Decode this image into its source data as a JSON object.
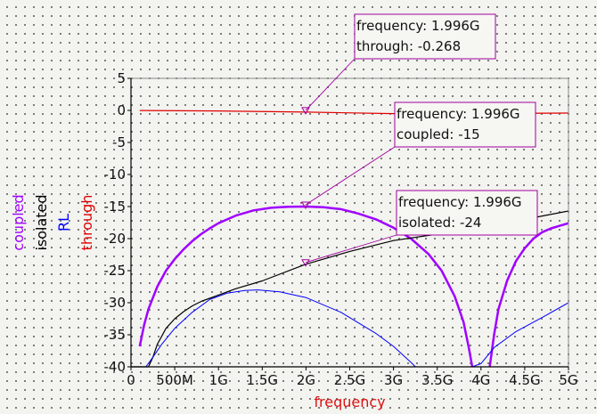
{
  "chart_data": {
    "type": "line",
    "xlabel": "frequency",
    "ylabels": [
      {
        "text": "coupled",
        "color": "#a000ff"
      },
      {
        "text": "isolated",
        "color": "#000000"
      },
      {
        "text": "RL",
        "color": "#0000ff"
      },
      {
        "text": "through",
        "color": "#e00000"
      }
    ],
    "xlim": [
      0,
      5000000000
    ],
    "ylim": [
      -40,
      5
    ],
    "xticks": [
      {
        "v": 0,
        "label": "0"
      },
      {
        "v": 500000000,
        "label": "500M"
      },
      {
        "v": 1000000000,
        "label": "1G"
      },
      {
        "v": 1500000000,
        "label": "1.5G"
      },
      {
        "v": 2000000000,
        "label": "2G"
      },
      {
        "v": 2500000000,
        "label": "2.5G"
      },
      {
        "v": 3000000000,
        "label": "3G"
      },
      {
        "v": 3500000000,
        "label": "3.5G"
      },
      {
        "v": 4000000000,
        "label": "4G"
      },
      {
        "v": 4500000000,
        "label": "4.5G"
      },
      {
        "v": 5000000000,
        "label": "5G"
      }
    ],
    "yticks": [
      {
        "v": 5,
        "label": "5"
      },
      {
        "v": 0,
        "label": "0"
      },
      {
        "v": -5,
        "label": "-5"
      },
      {
        "v": -10,
        "label": "-10"
      },
      {
        "v": -15,
        "label": "-15"
      },
      {
        "v": -20,
        "label": "-20"
      },
      {
        "v": -25,
        "label": "-25"
      },
      {
        "v": -30,
        "label": "-30"
      },
      {
        "v": -35,
        "label": "-35"
      },
      {
        "v": -40,
        "label": "-40"
      }
    ],
    "series": [
      {
        "name": "through",
        "color": "#e00000",
        "width": 1.2,
        "points": [
          [
            100000000,
            -0.01
          ],
          [
            1000000000,
            -0.08
          ],
          [
            2000000000,
            -0.27
          ],
          [
            3000000000,
            -0.5
          ],
          [
            4000000000,
            -0.48
          ],
          [
            5000000000,
            -0.42
          ]
        ]
      },
      {
        "name": "coupled",
        "color": "#a000ff",
        "width": 2.5,
        "points": [
          [
            100000000,
            -36.8
          ],
          [
            150000000,
            -33.5
          ],
          [
            200000000,
            -31
          ],
          [
            300000000,
            -27.5
          ],
          [
            400000000,
            -25
          ],
          [
            500000000,
            -23.2
          ],
          [
            600000000,
            -21.7
          ],
          [
            700000000,
            -20.4
          ],
          [
            800000000,
            -19.3
          ],
          [
            900000000,
            -18.4
          ],
          [
            1000000000,
            -17.6
          ],
          [
            1100000000,
            -17
          ],
          [
            1200000000,
            -16.4
          ],
          [
            1300000000,
            -16
          ],
          [
            1400000000,
            -15.6
          ],
          [
            1500000000,
            -15.4
          ],
          [
            1600000000,
            -15.2
          ],
          [
            1700000000,
            -15.1
          ],
          [
            1800000000,
            -15.03
          ],
          [
            1996000000,
            -15
          ],
          [
            2200000000,
            -15.1
          ],
          [
            2400000000,
            -15.4
          ],
          [
            2600000000,
            -16.1
          ],
          [
            2800000000,
            -17
          ],
          [
            3000000000,
            -18.3
          ],
          [
            3200000000,
            -20
          ],
          [
            3400000000,
            -22.4
          ],
          [
            3550000000,
            -25
          ],
          [
            3700000000,
            -29
          ],
          [
            3800000000,
            -33
          ],
          [
            3860000000,
            -37
          ],
          [
            3900000000,
            -40
          ]
        ]
      },
      {
        "name": "coupled",
        "color": "#a000ff",
        "width": 2.5,
        "points": [
          [
            4100000000,
            -40
          ],
          [
            4150000000,
            -35
          ],
          [
            4200000000,
            -31
          ],
          [
            4300000000,
            -26.5
          ],
          [
            4400000000,
            -23.5
          ],
          [
            4500000000,
            -21.5
          ],
          [
            4600000000,
            -20
          ],
          [
            4700000000,
            -19
          ],
          [
            4800000000,
            -18.4
          ],
          [
            4900000000,
            -18
          ],
          [
            5000000000,
            -17.6
          ]
        ]
      },
      {
        "name": "isolated",
        "color": "#000000",
        "width": 1.2,
        "points": [
          [
            0,
            -40
          ],
          [
            200000000,
            -40
          ],
          [
            250000000,
            -38.5
          ],
          [
            300000000,
            -36.5
          ],
          [
            400000000,
            -34
          ],
          [
            500000000,
            -32.5
          ],
          [
            600000000,
            -31.4
          ],
          [
            700000000,
            -30.5
          ],
          [
            800000000,
            -29.8
          ],
          [
            900000000,
            -29.3
          ],
          [
            1000000000,
            -28.8
          ],
          [
            1200000000,
            -27.8
          ],
          [
            1500000000,
            -26.6
          ],
          [
            1996000000,
            -24
          ],
          [
            2500000000,
            -22
          ],
          [
            3000000000,
            -20.3
          ],
          [
            3500000000,
            -19.3
          ],
          [
            4000000000,
            -18.3
          ],
          [
            4500000000,
            -17
          ],
          [
            5000000000,
            -15.7
          ]
        ]
      },
      {
        "name": "RL",
        "color": "#0000ff",
        "width": 1.0,
        "points": [
          [
            0,
            -40
          ],
          [
            170000000,
            -40
          ],
          [
            250000000,
            -38.5
          ],
          [
            350000000,
            -36.5
          ],
          [
            500000000,
            -34
          ],
          [
            700000000,
            -31.5
          ],
          [
            900000000,
            -29.5
          ],
          [
            1100000000,
            -28.5
          ],
          [
            1300000000,
            -28.1
          ],
          [
            1450000000,
            -28
          ],
          [
            1700000000,
            -28.3
          ],
          [
            2000000000,
            -29.2
          ],
          [
            2400000000,
            -31.5
          ],
          [
            2800000000,
            -34.8
          ],
          [
            3000000000,
            -36.8
          ],
          [
            3200000000,
            -39.3
          ],
          [
            3250000000,
            -40
          ],
          [
            3900000000,
            -40
          ],
          [
            4000000000,
            -39.5
          ],
          [
            4150000000,
            -37
          ],
          [
            4400000000,
            -34.5
          ],
          [
            4700000000,
            -32.3
          ],
          [
            5000000000,
            -30
          ]
        ]
      }
    ],
    "markers": [
      {
        "x": 1996000000,
        "y": -0.268,
        "lines": [
          "frequency: 1.996G",
          "through: -0.268"
        ],
        "box_border": "#a000a0"
      },
      {
        "x": 1996000000,
        "y": -15,
        "lines": [
          "frequency: 1.996G",
          "coupled: -15"
        ],
        "box_border": "#a000a0"
      },
      {
        "x": 1996000000,
        "y": -24,
        "lines": [
          "frequency: 1.996G",
          "isolated: -24"
        ],
        "box_border": "#a000a0"
      }
    ]
  }
}
